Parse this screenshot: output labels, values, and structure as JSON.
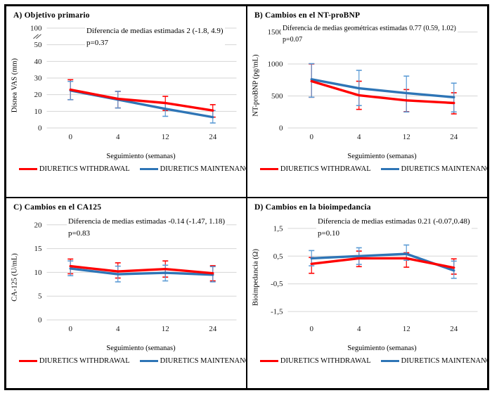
{
  "chart_data": {
    "type": "line",
    "categories": [
      "0",
      "4",
      "12",
      "24"
    ],
    "xlabel": "Seguimiento (semanas)",
    "grid": true,
    "legend_position": "bottom",
    "legend": [
      {
        "name": "DIURETICS WITHDRAWAL",
        "color": "#FF0000"
      },
      {
        "name": "DIURETICS MAINTENANCE",
        "color": "#2E75B6"
      }
    ],
    "panels": [
      {
        "id": "A",
        "title": "A) Objetivo primario",
        "ylabel": "Disnea VAS (mm)",
        "annotation": "Diferencia de medias estimadas 2 (-1.8, 4.9)",
        "p_value": "p=0.37",
        "ylim": [
          0,
          60
        ],
        "axis_break_value": 55,
        "yticks": [
          {
            "label": "0",
            "value": 0
          },
          {
            "label": "10",
            "value": 10
          },
          {
            "label": "20",
            "value": 20
          },
          {
            "label": "30",
            "value": 30
          },
          {
            "label": "40",
            "value": 40
          },
          {
            "label": "50",
            "value": 50
          },
          {
            "label": "100",
            "value": 60
          }
        ],
        "series": [
          {
            "name": "DIURETICS WITHDRAWAL",
            "color": "#FF0000",
            "error_color": "#FF0000",
            "values": [
              23,
              17.5,
              15,
              10.5
            ],
            "error_bars": [
              [
                17,
                29
              ],
              [
                12,
                22
              ],
              [
                10.5,
                19
              ],
              [
                6.5,
                14
              ]
            ]
          },
          {
            "name": "DIURETICS MAINTENANCE",
            "color": "#2E75B6",
            "error_color": "#5B9BD5",
            "values": [
              22.5,
              17,
              11.5,
              6.5
            ],
            "error_bars": [
              [
                17,
                28
              ],
              [
                12,
                22
              ],
              [
                7,
                15
              ],
              [
                3,
                10.5
              ]
            ]
          }
        ]
      },
      {
        "id": "B",
        "title": "B) Cambios en el NT-proBNP",
        "ylabel": "NT-proBNP (pg/mL)",
        "annotation": "Diferencia de medias geométricas estimadas  0.77 (0.59, 1.02)",
        "p_value": "p=0.07",
        "ylim": [
          0,
          1560
        ],
        "yticks": [
          {
            "label": "0",
            "value": 0
          },
          {
            "label": "500",
            "value": 500
          },
          {
            "label": "1000",
            "value": 1000
          },
          {
            "label": "1500",
            "value": 1500
          }
        ],
        "series": [
          {
            "name": "DIURETICS WITHDRAWAL",
            "color": "#FF0000",
            "error_color": "#FF0000",
            "values": [
              730,
              510,
              430,
              390
            ],
            "error_bars": [
              [
                480,
                1000
              ],
              [
                290,
                730
              ],
              [
                255,
                600
              ],
              [
                220,
                550
              ]
            ]
          },
          {
            "name": "DIURETICS MAINTENANCE",
            "color": "#2E75B6",
            "error_color": "#5B9BD5",
            "values": [
              760,
              620,
              545,
              480
            ],
            "error_bars": [
              [
                480,
                1005
              ],
              [
                350,
                900
              ],
              [
                250,
                810
              ],
              [
                250,
                700
              ]
            ]
          }
        ]
      },
      {
        "id": "C",
        "title": "C) Cambios en el CA125",
        "ylabel": "CA-125 (U/mL)",
        "annotation": "Diferencia de medias estimadas -0.14 (-1.47, 1.18)",
        "p_value": "p=0.83",
        "ylim": [
          0,
          21
        ],
        "yticks": [
          {
            "label": "0",
            "value": 0
          },
          {
            "label": "5",
            "value": 5
          },
          {
            "label": "10",
            "value": 10
          },
          {
            "label": "15",
            "value": 15
          },
          {
            "label": "20",
            "value": 20
          }
        ],
        "series": [
          {
            "name": "DIURETICS WITHDRAWAL",
            "color": "#FF0000",
            "error_color": "#FF0000",
            "values": [
              11.3,
              10.2,
              10.7,
              9.8
            ],
            "error_bars": [
              [
                9.7,
                12.8
              ],
              [
                8.8,
                12.0
              ],
              [
                9.0,
                12.4
              ],
              [
                8.2,
                11.4
              ]
            ]
          },
          {
            "name": "DIURETICS MAINTENANCE",
            "color": "#2E75B6",
            "error_color": "#5B9BD5",
            "values": [
              10.8,
              9.6,
              9.9,
              9.5
            ],
            "error_bars": [
              [
                9.3,
                12.4
              ],
              [
                8.0,
                11.3
              ],
              [
                8.2,
                11.5
              ],
              [
                8.0,
                11.2
              ]
            ]
          }
        ]
      },
      {
        "id": "D",
        "title": "D) Cambios en la bioimpedancia",
        "ylabel": "Bioimpedancia (Ω)",
        "annotation": "Diferencia de medias estimadas 0.21 (-0.07,0.48)",
        "p_value": "p=0.10",
        "ylim": [
          -1.8,
          1.8
        ],
        "yticks": [
          {
            "label": "-1,5",
            "value": -1.5
          },
          {
            "label": "-0,5",
            "value": -0.5
          },
          {
            "label": "0,5",
            "value": 0.5
          },
          {
            "label": "1,5",
            "value": 1.5
          }
        ],
        "series": [
          {
            "name": "DIURETICS WITHDRAWAL",
            "color": "#FF0000",
            "error_color": "#FF0000",
            "values": [
              0.22,
              0.42,
              0.42,
              0.08
            ],
            "error_bars": [
              [
                -0.12,
                0.45
              ],
              [
                0.12,
                0.68
              ],
              [
                0.1,
                0.62
              ],
              [
                -0.15,
                0.4
              ]
            ]
          },
          {
            "name": "DIURETICS MAINTENANCE",
            "color": "#2E75B6",
            "error_color": "#5B9BD5",
            "values": [
              0.42,
              0.5,
              0.58,
              -0.02
            ],
            "error_bars": [
              [
                0.15,
                0.7
              ],
              [
                0.2,
                0.8
              ],
              [
                0.35,
                0.9
              ],
              [
                -0.3,
                0.32
              ]
            ]
          }
        ]
      }
    ]
  }
}
